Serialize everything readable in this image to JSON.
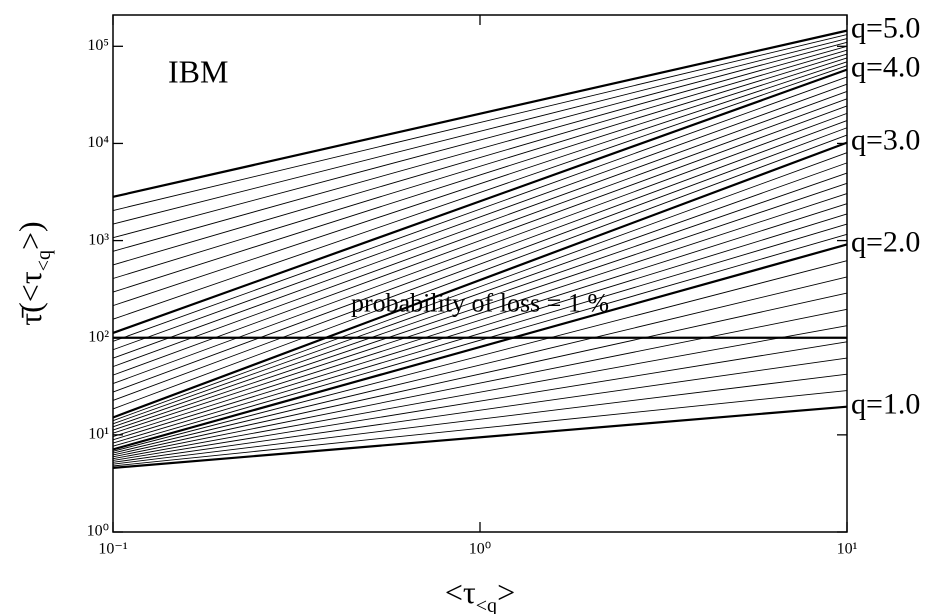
{
  "chart_data": {
    "type": "line",
    "annotation": "IBM",
    "xlabel": [
      "<τ",
      "<q",
      ">"
    ],
    "ylabel": [
      "τ̄(<τ",
      "<q",
      ">)"
    ],
    "log_x": true,
    "log_y": true,
    "xlim": [
      0.1,
      10
    ],
    "ylim": [
      1,
      210000
    ],
    "xticks": [
      {
        "value": 0.1,
        "label": "10⁻¹"
      },
      {
        "value": 1,
        "label": "10⁰"
      },
      {
        "value": 10,
        "label": "10¹"
      }
    ],
    "yticks": [
      {
        "value": 1,
        "label": "10⁰"
      },
      {
        "value": 10,
        "label": "10¹"
      },
      {
        "value": 100,
        "label": "10²"
      },
      {
        "value": 1000,
        "label": "10³"
      },
      {
        "value": 10000,
        "label": "10⁴"
      },
      {
        "value": 100000,
        "label": "10⁵"
      }
    ],
    "x": [
      0.1,
      10
    ],
    "color": "#000000",
    "series": [
      {
        "name": "q=1.0",
        "width": 2.2,
        "values": [
          4.57,
          19.5
        ]
      },
      {
        "width": 0.9,
        "values": [
          4.78,
          28.6
        ]
      },
      {
        "width": 0.9,
        "values": [
          4.99,
          42.1
        ]
      },
      {
        "width": 0.9,
        "values": [
          5.21,
          61.8
        ]
      },
      {
        "width": 0.9,
        "values": [
          5.45,
          90.8
        ]
      },
      {
        "width": 0.9,
        "values": [
          5.69,
          133
        ]
      },
      {
        "width": 0.9,
        "values": [
          5.94,
          196
        ]
      },
      {
        "width": 0.9,
        "values": [
          6.21,
          288
        ]
      },
      {
        "width": 0.9,
        "values": [
          6.49,
          423
        ]
      },
      {
        "width": 0.9,
        "values": [
          6.78,
          621
        ]
      },
      {
        "name": "q=2.0",
        "width": 2.2,
        "values": [
          7.08,
          912
        ]
      },
      {
        "width": 0.9,
        "values": [
          7.64,
          1160
        ]
      },
      {
        "width": 0.9,
        "values": [
          8.24,
          1480
        ]
      },
      {
        "width": 0.9,
        "values": [
          8.89,
          1880
        ]
      },
      {
        "width": 0.9,
        "values": [
          9.59,
          2400
        ]
      },
      {
        "width": 0.9,
        "values": [
          10.4,
          3050
        ]
      },
      {
        "width": 0.9,
        "values": [
          11.2,
          3890
        ]
      },
      {
        "width": 0.9,
        "values": [
          12.1,
          4950
        ]
      },
      {
        "width": 0.9,
        "values": [
          13.0,
          6310
        ]
      },
      {
        "width": 0.9,
        "values": [
          14.0,
          8040
        ]
      },
      {
        "name": "q=3.0",
        "width": 2.2,
        "values": [
          15.1,
          10200
        ]
      },
      {
        "width": 0.9,
        "values": [
          18.5,
          12200
        ]
      },
      {
        "width": 0.9,
        "values": [
          22.6,
          14500
        ]
      },
      {
        "width": 0.9,
        "values": [
          27.6,
          17200
        ]
      },
      {
        "width": 0.9,
        "values": [
          33.7,
          20400
        ]
      },
      {
        "width": 0.9,
        "values": [
          41.2,
          24300
        ]
      },
      {
        "width": 0.9,
        "values": [
          50.4,
          28800
        ]
      },
      {
        "width": 0.9,
        "values": [
          61.5,
          34300
        ]
      },
      {
        "width": 0.9,
        "values": [
          75.2,
          40700
        ]
      },
      {
        "width": 0.9,
        "values": [
          91.8,
          48400
        ]
      },
      {
        "name": "q=4.0",
        "width": 2.2,
        "values": [
          112,
          57500
        ]
      },
      {
        "width": 0.9,
        "values": [
          155,
          63100
        ]
      },
      {
        "width": 0.9,
        "values": [
          214,
          69200
        ]
      },
      {
        "width": 0.9,
        "values": [
          295,
          75900
        ]
      },
      {
        "width": 0.9,
        "values": [
          407,
          83200
        ]
      },
      {
        "width": 0.9,
        "values": [
          562,
          91200
        ]
      },
      {
        "width": 0.9,
        "values": [
          776,
          100000
        ]
      },
      {
        "width": 0.9,
        "values": [
          1070,
          110000
        ]
      },
      {
        "width": 0.9,
        "values": [
          1480,
          120000
        ]
      },
      {
        "width": 0.9,
        "values": [
          2040,
          132000
        ]
      },
      {
        "name": "q=5.0",
        "width": 2.2,
        "values": [
          2820,
          145000
        ]
      }
    ],
    "reference_line": {
      "value": 100,
      "label": "probability of loss = 1 %"
    }
  }
}
